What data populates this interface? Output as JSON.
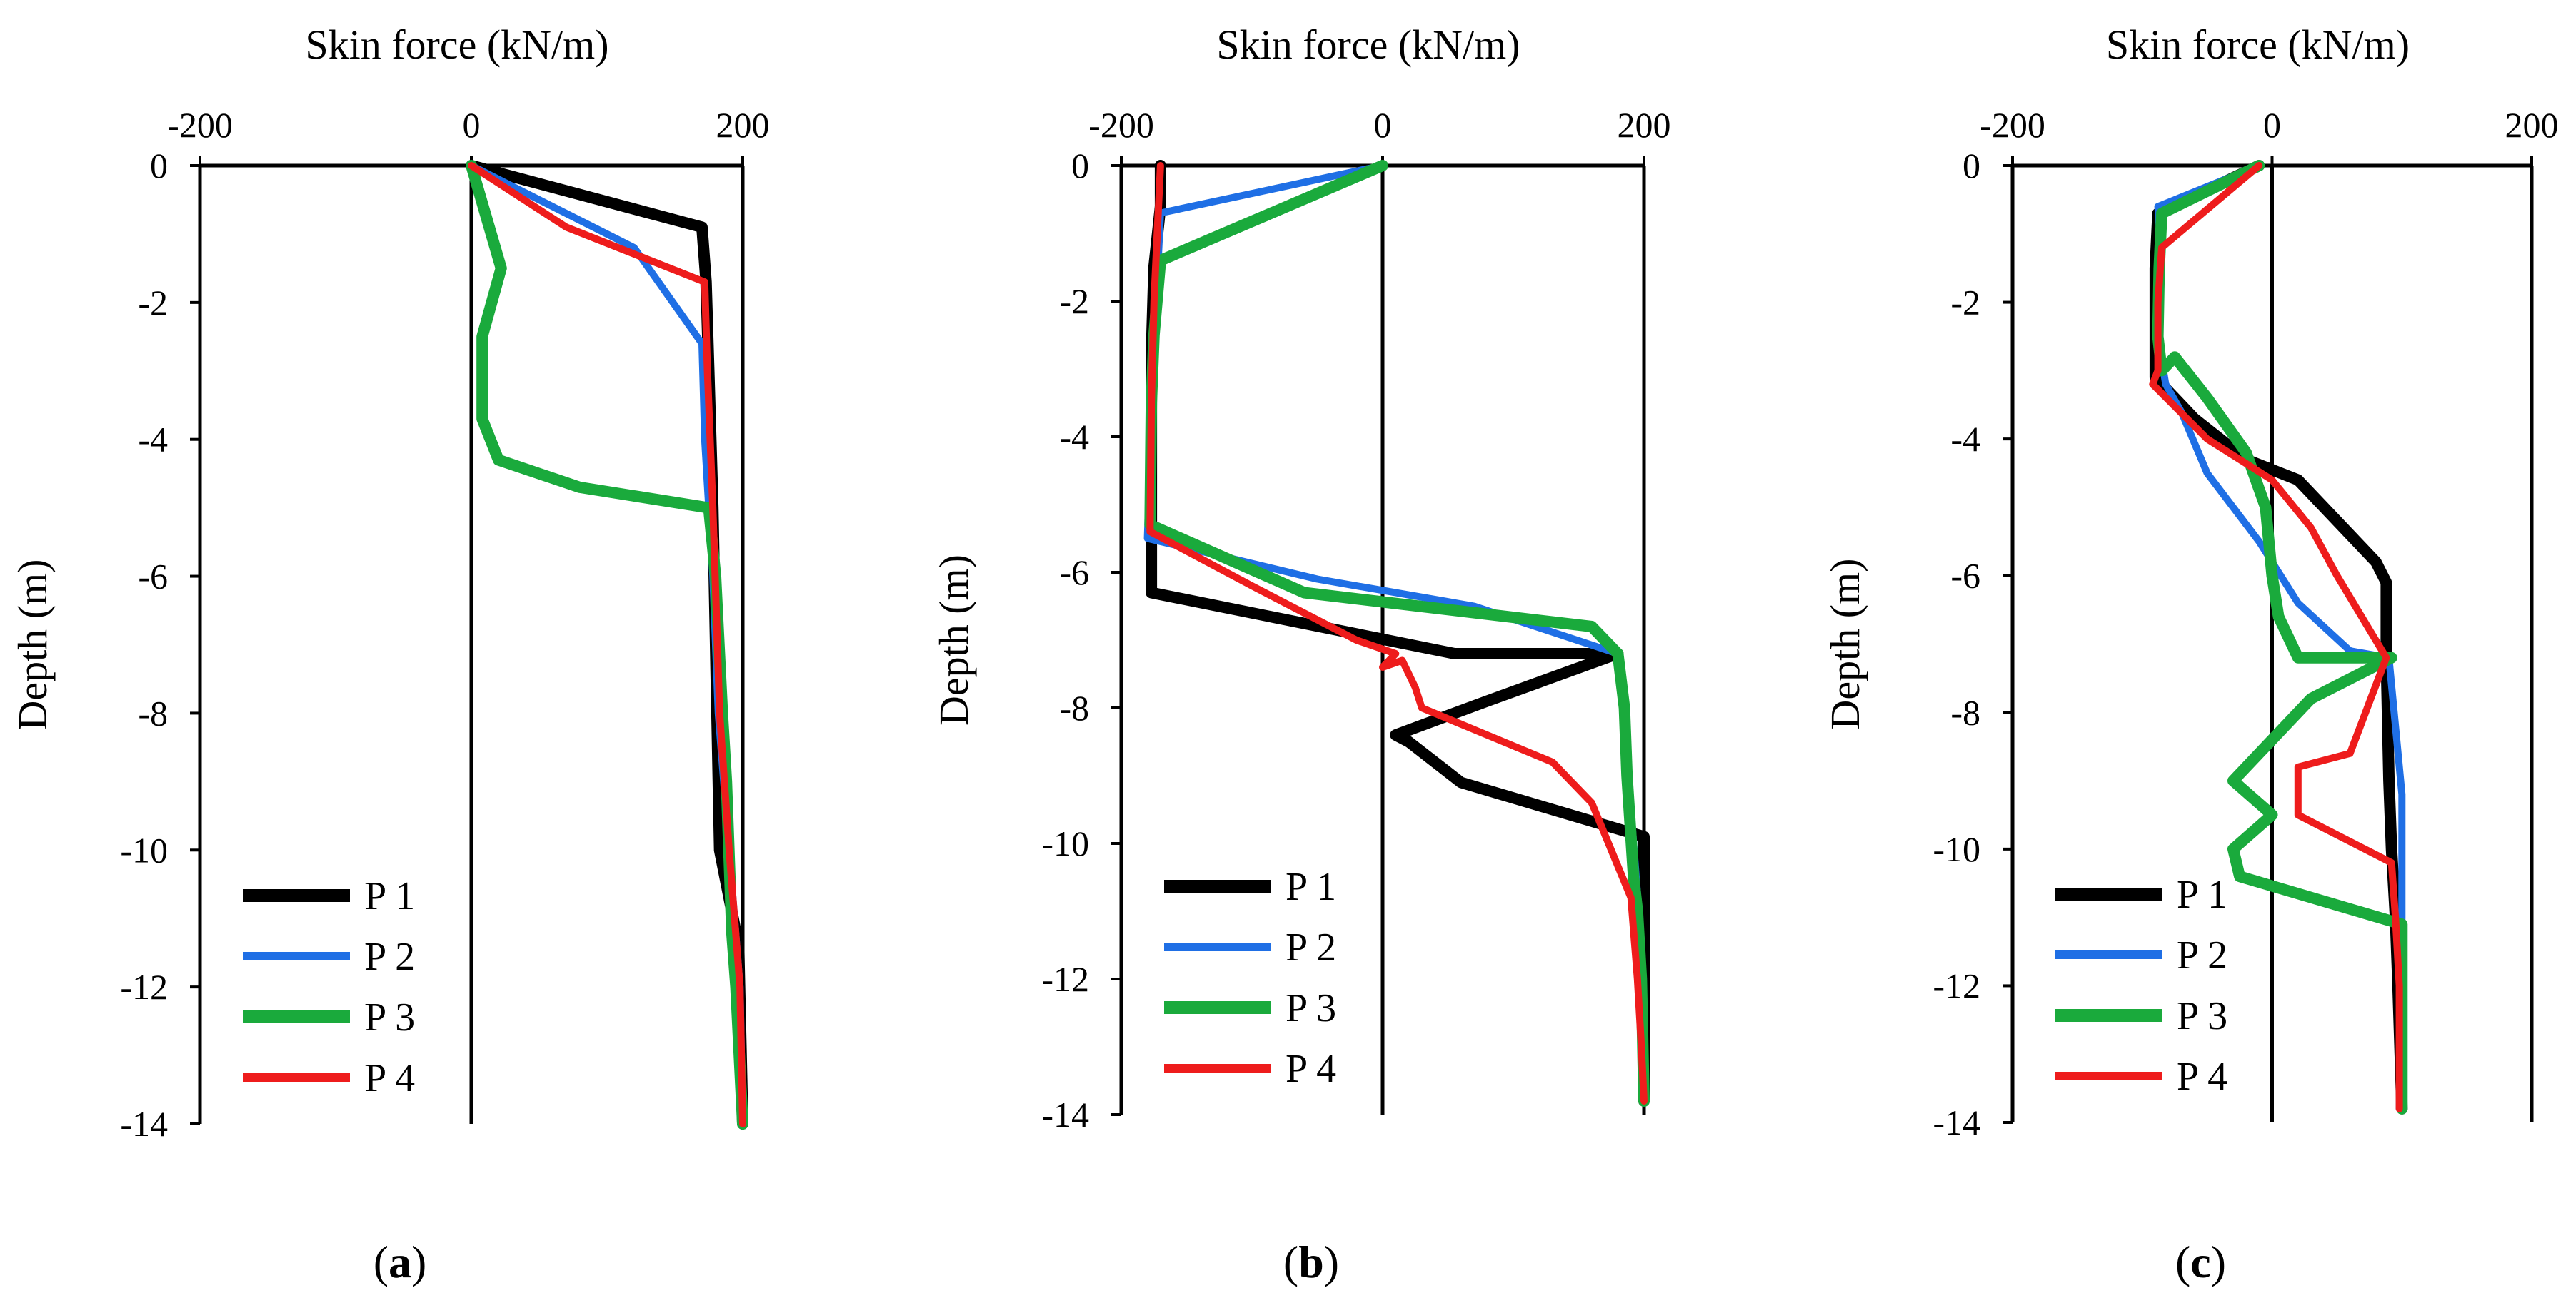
{
  "chart_data": [
    {
      "type": "line",
      "panel": "a",
      "panel_label": {
        "open": "(",
        "letter": "a",
        "close": ")"
      },
      "title": "",
      "xlabel": "Skin force (kN/m)",
      "ylabel": "Depth (m)",
      "xlim": [
        -200,
        200
      ],
      "ylim": [
        -14,
        0
      ],
      "xticks": [
        -200,
        0,
        200
      ],
      "yticks": [
        0,
        -2,
        -4,
        -6,
        -8,
        -10,
        -12,
        -14
      ],
      "xtick_labels": [
        "-200",
        "0",
        "200"
      ],
      "ytick_labels": [
        "0",
        "-2",
        "-4",
        "-6",
        "-8",
        "-10",
        "-12",
        "-14"
      ],
      "legend_position": "bottom-left",
      "series": [
        {
          "name": "P 1",
          "color": "#000000",
          "width": "thick",
          "x": [
            0,
            170,
            173,
            175,
            178,
            180,
            183,
            197,
            200
          ],
          "y": [
            0,
            -0.9,
            -1.7,
            -3,
            -5,
            -7,
            -10,
            -11.4,
            -14
          ]
        },
        {
          "name": "P 2",
          "color": "#1f6fe5",
          "width": "thin",
          "x": [
            0,
            120,
            170,
            172,
            178,
            182,
            190,
            198,
            200
          ],
          "y": [
            0,
            -1.2,
            -2.6,
            -4,
            -6,
            -8,
            -10,
            -12,
            -14
          ]
        },
        {
          "name": "P 3",
          "color": "#1aaa3c",
          "width": "thick",
          "x": [
            0,
            22,
            8,
            8,
            20,
            80,
            175,
            180,
            185,
            188,
            192,
            195,
            200
          ],
          "y": [
            0,
            -1.5,
            -2.5,
            -3.7,
            -4.3,
            -4.7,
            -5,
            -6,
            -8,
            -9,
            -11.2,
            -12,
            -14
          ]
        },
        {
          "name": "P 4",
          "color": "#ee1c1c",
          "width": "thin",
          "x": [
            0,
            70,
            172,
            174,
            178,
            183,
            190,
            198,
            200
          ],
          "y": [
            0,
            -0.9,
            -1.7,
            -3,
            -5,
            -8,
            -10,
            -12,
            -14
          ]
        }
      ]
    },
    {
      "type": "line",
      "panel": "b",
      "panel_label": {
        "open": "(",
        "letter": "b",
        "close": ")"
      },
      "title": "",
      "xlabel": "Skin force (kN/m)",
      "ylabel": "Depth (m)",
      "xlim": [
        -200,
        200
      ],
      "ylim": [
        -14,
        0
      ],
      "xticks": [
        -200,
        0,
        200
      ],
      "yticks": [
        0,
        -2,
        -4,
        -6,
        -8,
        -10,
        -12,
        -14
      ],
      "xtick_labels": [
        "-200",
        "0",
        "200"
      ],
      "ytick_labels": [
        "0",
        "-2",
        "-4",
        "-6",
        "-8",
        "-10",
        "-12",
        "-14"
      ],
      "legend_position": "bottom-left",
      "series": [
        {
          "name": "P 1",
          "color": "#000000",
          "width": "thick",
          "x": [
            -170,
            -170,
            -175,
            -177,
            -177,
            -177,
            55,
            180,
            80,
            10,
            20,
            60,
            200,
            200,
            200
          ],
          "y": [
            0,
            -0.6,
            -1.5,
            -2.8,
            -4.5,
            -6.3,
            -7.2,
            -7.2,
            -7.9,
            -8.4,
            -8.5,
            -9.1,
            -9.9,
            -11,
            -13.8
          ]
        },
        {
          "name": "P 2",
          "color": "#1f6fe5",
          "width": "thin",
          "x": [
            0,
            -170,
            -172,
            -175,
            -180,
            -50,
            70,
            180,
            185,
            188,
            192,
            196,
            198,
            200
          ],
          "y": [
            0,
            -0.7,
            -1.5,
            -2.5,
            -5.5,
            -6.1,
            -6.5,
            -7.2,
            -8,
            -9,
            -10,
            -11,
            -12,
            -13.8
          ]
        },
        {
          "name": "P 3",
          "color": "#1aaa3c",
          "width": "thick",
          "x": [
            0,
            -170,
            -175,
            -177,
            -178,
            -60,
            160,
            180,
            185,
            187,
            192,
            195,
            198,
            200
          ],
          "y": [
            0,
            -1.4,
            -2.5,
            -3.5,
            -5.3,
            -6.3,
            -6.8,
            -7.2,
            -8,
            -9,
            -10.5,
            -11,
            -12,
            -13.8
          ]
        },
        {
          "name": "P 4",
          "color": "#ee1c1c",
          "width": "thin",
          "x": [
            -170,
            -172,
            -175,
            -177,
            -178,
            -100,
            -20,
            10,
            0,
            15,
            25,
            30,
            130,
            160,
            190,
            195,
            198,
            200
          ],
          "y": [
            0,
            -0.8,
            -2,
            -3.5,
            -5.4,
            -6.2,
            -7,
            -7.2,
            -7.4,
            -7.3,
            -7.7,
            -8.0,
            -8.8,
            -9.4,
            -10.8,
            -12,
            -13,
            -13.8
          ]
        }
      ]
    },
    {
      "type": "line",
      "panel": "c",
      "panel_label": {
        "open": "(",
        "letter": "c",
        "close": ")"
      },
      "title": "",
      "xlabel": "Skin force (kN/m)",
      "ylabel": "Depth (m)",
      "xlim": [
        -200,
        200
      ],
      "ylim": [
        -14,
        0
      ],
      "xticks": [
        -200,
        0,
        200
      ],
      "yticks": [
        0,
        -2,
        -4,
        -6,
        -8,
        -10,
        -12,
        -14
      ],
      "xtick_labels": [
        "-200",
        "0",
        "200"
      ],
      "ytick_labels": [
        "0",
        "-2",
        "-4",
        "-6",
        "-8",
        "-10",
        "-12",
        "-14"
      ],
      "legend_position": "bottom-left",
      "series": [
        {
          "name": "P 1",
          "color": "#000000",
          "width": "thick",
          "x": [
            -10,
            -88,
            -90,
            -90,
            -60,
            -20,
            20,
            80,
            88,
            88,
            90,
            92,
            95,
            97,
            100
          ],
          "y": [
            0,
            -0.7,
            -1.5,
            -3.1,
            -3.7,
            -4.3,
            -4.6,
            -5.8,
            -6.1,
            -7.2,
            -9,
            -10,
            -11,
            -12,
            -13.8
          ]
        },
        {
          "name": "P 2",
          "color": "#1f6fe5",
          "width": "thin",
          "x": [
            -10,
            -88,
            -85,
            -88,
            -82,
            -70,
            -50,
            -10,
            20,
            60,
            90,
            100,
            100,
            98
          ],
          "y": [
            0,
            -0.6,
            -1.5,
            -2.5,
            -3.2,
            -3.6,
            -4.5,
            -5.5,
            -6.4,
            -7.1,
            -7.2,
            -9.2,
            -11,
            -13.8
          ]
        },
        {
          "name": "P 3",
          "color": "#1aaa3c",
          "width": "thick",
          "x": [
            -10,
            -85,
            -87,
            -88,
            -85,
            -75,
            -50,
            -20,
            -5,
            0,
            5,
            20,
            92,
            30,
            -30,
            0,
            -30,
            -25,
            100,
            100,
            100,
            100
          ],
          "y": [
            0,
            -0.7,
            -1.5,
            -2.5,
            -3,
            -2.8,
            -3.4,
            -4.2,
            -5,
            -6,
            -6.6,
            -7.2,
            -7.2,
            -7.8,
            -9,
            -9.5,
            -10,
            -10.4,
            -11.1,
            -12,
            -13,
            -13.8
          ]
        },
        {
          "name": "P 4",
          "color": "#ee1c1c",
          "width": "thin",
          "x": [
            -10,
            -85,
            -88,
            -88,
            -92,
            -50,
            0,
            30,
            50,
            88,
            60,
            20,
            20,
            92,
            95,
            98,
            98
          ],
          "y": [
            0,
            -1.2,
            -2,
            -3,
            -3.2,
            -4.0,
            -4.6,
            -5.3,
            -6,
            -7.2,
            -8.6,
            -8.8,
            -9.5,
            -10.2,
            -11,
            -12,
            -13.8
          ]
        }
      ]
    }
  ]
}
